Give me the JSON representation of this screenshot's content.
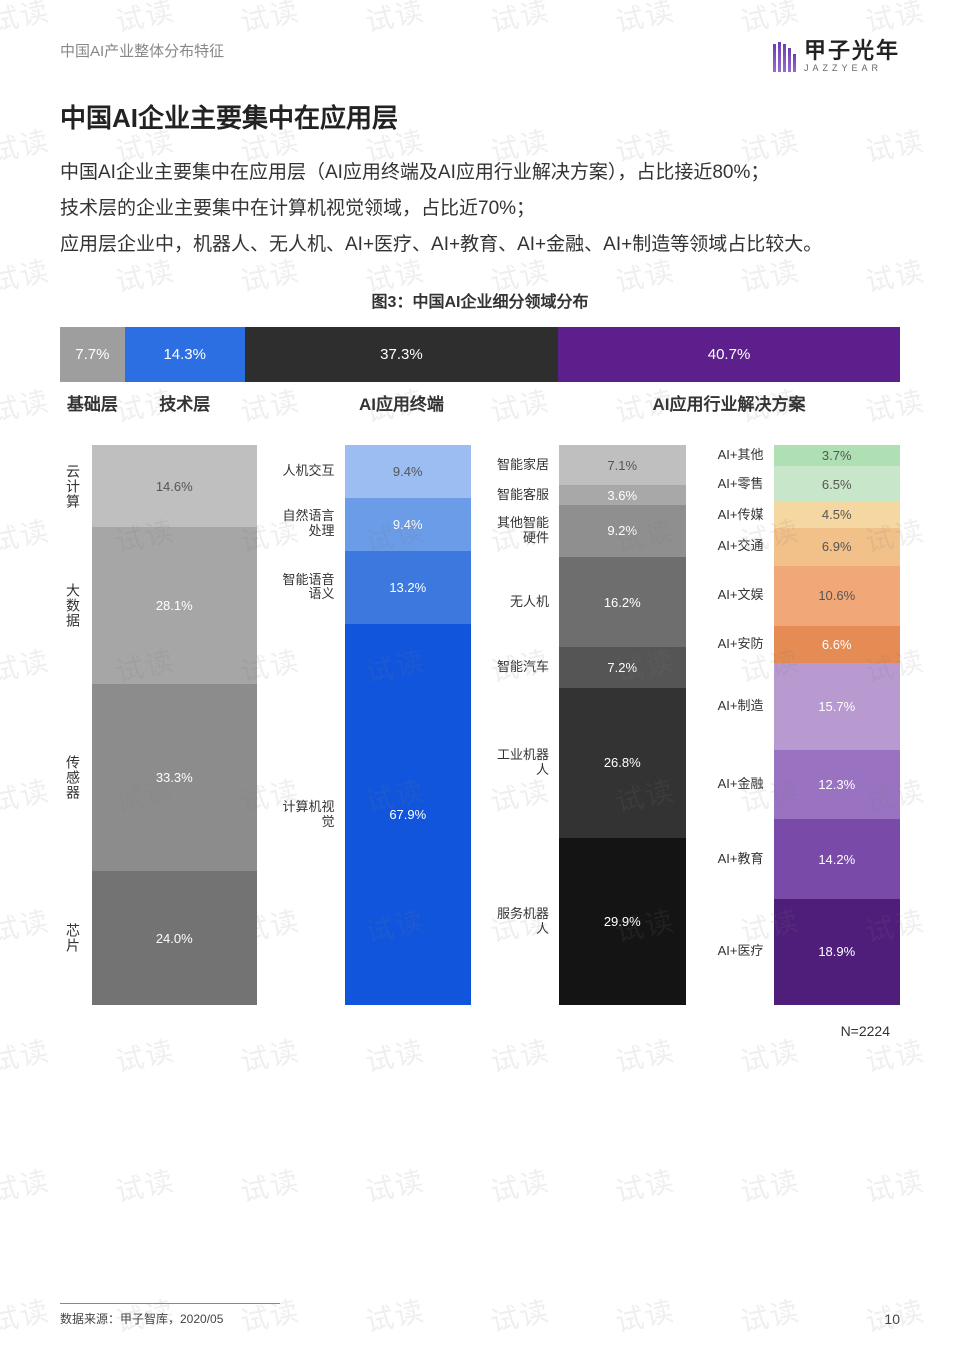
{
  "header": {
    "breadcrumb": "中国AI产业整体分布特征",
    "logo_cn": "甲子光年",
    "logo_en": "JAZZYEAR"
  },
  "title": "中国AI企业主要集中在应用层",
  "paragraphs": [
    "中国AI企业主要集中在应用层（AI应用终端及AI应用行业解决方案），占比接近80%；",
    "技术层的企业主要集中在计算机视觉领域，占比近70%；",
    "应用层企业中，机器人、无人机、AI+医疗、AI+教育、AI+金融、AI+制造等领域占比较大。"
  ],
  "chart": {
    "title": "图3：中国AI企业细分领域分布",
    "top_bar": {
      "segments": [
        {
          "label": "7.7%",
          "width": 7.7,
          "color": "#9e9e9e"
        },
        {
          "label": "14.3%",
          "width": 14.3,
          "color": "#2b6fe3"
        },
        {
          "label": "37.3%",
          "width": 37.3,
          "color": "#2e2e2e"
        },
        {
          "label": "40.7%",
          "width": 40.7,
          "color": "#5d1f8b"
        }
      ],
      "category_labels": [
        "基础层",
        "技术层",
        "AI应用终端",
        "AI应用行业解决方案"
      ]
    },
    "columns": [
      {
        "name": "基础层",
        "label_mode": "vertical-left",
        "bar": [
          {
            "label": "云计算",
            "pct": 14.6,
            "shown": "14.6%",
            "color": "#bfbfbf"
          },
          {
            "label": "大数据",
            "pct": 28.1,
            "shown": "28.1%",
            "color": "#a6a6a6"
          },
          {
            "label": "传感器",
            "pct": 33.3,
            "shown": "33.3%",
            "color": "#8c8c8c"
          },
          {
            "label": "芯片",
            "pct": 24.0,
            "shown": "24.0%",
            "color": "#737373"
          }
        ]
      },
      {
        "name": "技术层",
        "label_mode": "text-left",
        "bar": [
          {
            "label": "人机交互",
            "pct": 9.4,
            "shown": "9.4%",
            "color": "#9bbdf2"
          },
          {
            "label": "自然语言处理",
            "pct": 9.4,
            "shown": "9.4%",
            "color": "#6a9ce8"
          },
          {
            "label": "智能语音语义",
            "pct": 13.2,
            "shown": "13.2%",
            "color": "#3d78de"
          },
          {
            "label": "计算机视觉",
            "pct": 67.9,
            "shown": "67.9%",
            "color": "#1155dd"
          }
        ]
      },
      {
        "name": "AI应用终端",
        "label_mode": "text-left",
        "bar": [
          {
            "label": "智能家居",
            "pct": 7.1,
            "shown": "7.1%",
            "color": "#bfbfbf"
          },
          {
            "label": "智能客服",
            "pct": 3.6,
            "shown": "3.6%",
            "color": "#a8a8a8"
          },
          {
            "label": "其他智能硬件",
            "pct": 9.2,
            "shown": "9.2%",
            "color": "#8f8f8f"
          },
          {
            "label": "无人机",
            "pct": 16.2,
            "shown": "16.2%",
            "color": "#6e6e6e"
          },
          {
            "label": "智能汽车",
            "pct": 7.2,
            "shown": "7.2%",
            "color": "#555555"
          },
          {
            "label": "工业机器人",
            "pct": 26.8,
            "shown": "26.8%",
            "color": "#333333"
          },
          {
            "label": "服务机器人",
            "pct": 29.9,
            "shown": "29.9%",
            "color": "#141414"
          }
        ]
      },
      {
        "name": "AI应用行业解决方案",
        "label_mode": "text-left",
        "bar": [
          {
            "label": "AI+其他",
            "pct": 3.7,
            "shown": "3.7%",
            "color": "#aee0b4"
          },
          {
            "label": "AI+零售",
            "pct": 6.5,
            "shown": "6.5%",
            "color": "#c8e6c9"
          },
          {
            "label": "AI+传媒",
            "pct": 4.5,
            "shown": "4.5%",
            "color": "#f5d7a1"
          },
          {
            "label": "AI+交通",
            "pct": 6.9,
            "shown": "6.9%",
            "color": "#f2c089"
          },
          {
            "label": "AI+文娱",
            "pct": 10.6,
            "shown": "10.6%",
            "color": "#f0a878"
          },
          {
            "label": "AI+安防",
            "pct": 6.6,
            "shown": "6.6%",
            "color": "#e58b54"
          },
          {
            "label": "AI+制造",
            "pct": 15.7,
            "shown": "15.7%",
            "color": "#b89ad1"
          },
          {
            "label": "AI+金融",
            "pct": 12.3,
            "shown": "12.3%",
            "color": "#9a72c2"
          },
          {
            "label": "AI+教育",
            "pct": 14.2,
            "shown": "14.2%",
            "color": "#7a4aa8"
          },
          {
            "label": "AI+医疗",
            "pct": 18.9,
            "shown": "18.9%",
            "color": "#4f1e7a"
          }
        ]
      }
    ],
    "note": "N=2224"
  },
  "footer": {
    "source": "数据来源：甲子智库，2020/05",
    "page": "10"
  },
  "watermark_text": "试读"
}
